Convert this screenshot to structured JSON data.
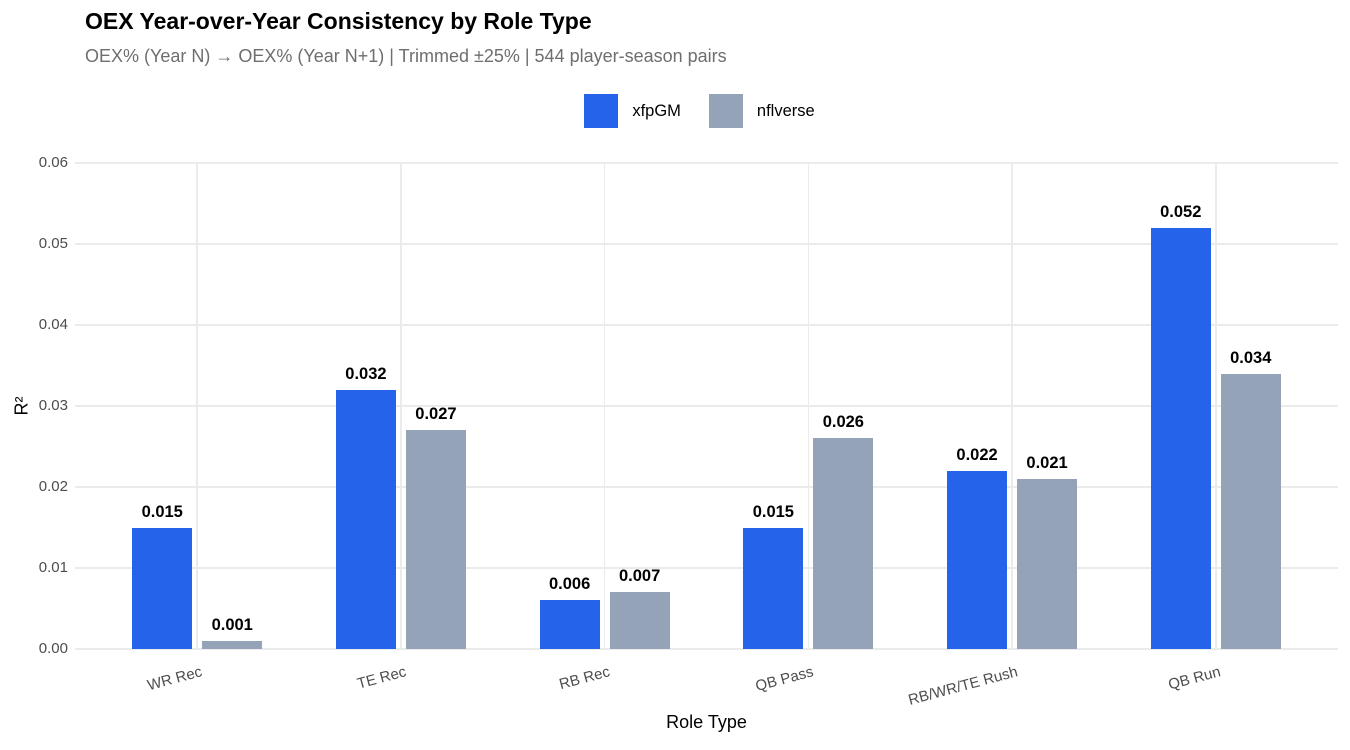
{
  "header": {
    "title": "OEX Year-over-Year Consistency by Role Type",
    "subtitle": "OEX% (Year N) → OEX% (Year N+1) | Trimmed ±25% | 544 player-season pairs"
  },
  "legend": {
    "items": [
      {
        "label": "xfpGM",
        "color": "#2563eb"
      },
      {
        "label": "nflverse",
        "color": "#94a3b8"
      }
    ]
  },
  "colors": {
    "series_blue": "#2563eb",
    "series_gray": "#94a3b8",
    "gridline": "#ebebeb",
    "axis_text": "#4d4d4d",
    "subtitle_text": "#6e6e6e",
    "background": "#ffffff"
  },
  "chart_data": {
    "type": "bar",
    "title": "OEX Year-over-Year Consistency by Role Type",
    "subtitle": "OEX% (Year N) → OEX% (Year N+1) | Trimmed ±25% | 544 player-season pairs",
    "xlabel": "Role Type",
    "ylabel": "R²",
    "ylim": [
      0,
      0.06
    ],
    "yticks": [
      "0.00",
      "0.01",
      "0.02",
      "0.03",
      "0.04",
      "0.05",
      "0.06"
    ],
    "grid": "major horizontal and vertical, light gray, no axis lines or tick marks",
    "legend_position": "top-center",
    "categories": [
      "WR Rec",
      "TE Rec",
      "RB Rec",
      "QB Pass",
      "RB/WR/TE Rush",
      "QB Run"
    ],
    "series": [
      {
        "name": "xfpGM",
        "color": "#2563eb",
        "values": [
          0.015,
          0.032,
          0.006,
          0.015,
          0.022,
          0.052
        ]
      },
      {
        "name": "nflverse",
        "color": "#94a3b8",
        "values": [
          0.001,
          0.027,
          0.007,
          0.026,
          0.021,
          0.034
        ]
      }
    ],
    "value_labels": [
      [
        "0.015",
        "0.032",
        "0.006",
        "0.015",
        "0.022",
        "0.052"
      ],
      [
        "0.001",
        "0.027",
        "0.007",
        "0.026",
        "0.021",
        "0.034"
      ]
    ]
  }
}
